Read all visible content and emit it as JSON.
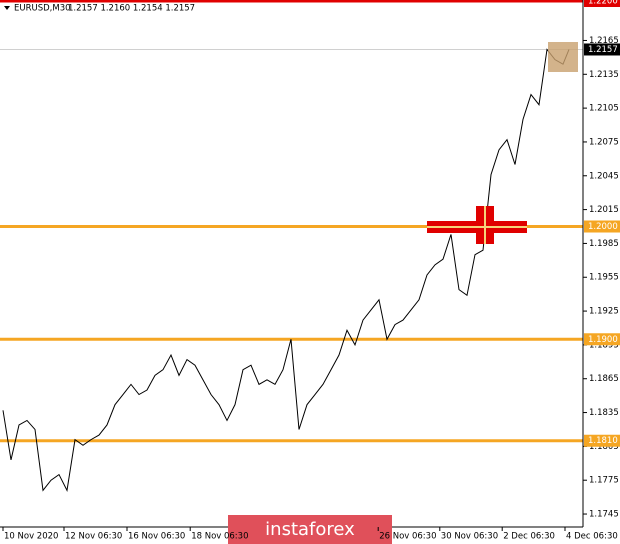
{
  "chart_data": {
    "type": "line",
    "title": "EURUSD,M30",
    "subtitle": "1.2157 1.2160 1.2154 1.2157",
    "watermark": "instaforex",
    "series": [
      {
        "name": "EURUSD",
        "color": "#000000",
        "x": [
          0,
          1,
          2,
          3,
          4,
          5,
          6,
          7,
          8,
          9,
          10,
          11,
          12,
          13,
          14,
          15,
          16,
          17,
          18,
          19,
          20,
          21,
          22,
          23,
          24,
          25,
          26,
          27,
          28,
          29,
          30,
          31,
          32,
          33,
          34,
          35,
          36,
          37,
          38,
          39,
          40,
          41,
          42,
          43,
          44,
          45,
          46,
          47,
          48,
          49,
          50,
          51,
          52,
          53,
          54,
          55,
          56,
          57,
          58,
          59,
          60,
          61,
          62,
          63,
          64,
          65,
          66,
          67,
          68,
          69,
          70,
          70.75
        ],
        "values": [
          1.1837,
          1.1793,
          1.1824,
          1.1828,
          1.182,
          1.1766,
          1.1775,
          1.178,
          1.1766,
          1.1811,
          1.1806,
          1.1811,
          1.1815,
          1.1824,
          1.1842,
          1.1851,
          1.186,
          1.1851,
          1.1855,
          1.1868,
          1.1873,
          1.1886,
          1.1868,
          1.1882,
          1.1877,
          1.1864,
          1.1851,
          1.1842,
          1.1828,
          1.1842,
          1.1873,
          1.1877,
          1.186,
          1.1864,
          1.186,
          1.1873,
          1.19,
          1.182,
          1.1842,
          1.1851,
          1.186,
          1.1873,
          1.1886,
          1.1908,
          1.1895,
          1.1917,
          1.1926,
          1.1935,
          1.19,
          1.1913,
          1.1917,
          1.1926,
          1.1935,
          1.1957,
          1.1966,
          1.1971,
          1.1993,
          1.1944,
          1.1939,
          1.1975,
          1.1979,
          1.2046,
          1.2068,
          1.2077,
          1.2055,
          1.2095,
          1.2117,
          1.2108,
          1.2157,
          1.2148,
          1.2144,
          1.2157
        ]
      }
    ],
    "xlim": [
      -0.375,
      72.5
    ],
    "xticks": [
      {
        "value": 0,
        "label": "10 Nov 2020"
      },
      {
        "value": 7.625,
        "label": "12 Nov 06:30"
      },
      {
        "value": 15.5,
        "label": "16 Nov 06:30"
      },
      {
        "value": 23.4,
        "label": "18 Nov 06:30"
      },
      {
        "value": 46.9,
        "label": "26 Nov 06:30"
      },
      {
        "value": 54.6,
        "label": "30 Nov 06:30"
      },
      {
        "value": 62.4,
        "label": "2 Dec 06:30"
      },
      {
        "value": 70.25,
        "label": "4 Dec 06:30"
      }
    ],
    "ylim": [
      1.17335,
      1.22
    ],
    "yticks": [
      1.2165,
      1.2135,
      1.2105,
      1.2075,
      1.2045,
      1.2015,
      1.1985,
      1.1955,
      1.1925,
      1.1895,
      1.1865,
      1.1835,
      1.1805,
      1.1775,
      1.1745
    ],
    "levels": [
      {
        "value": 1.22,
        "label": "1.2200",
        "color": "#e00000"
      },
      {
        "value": 1.2,
        "label": "1.2000",
        "color": "#f5a623"
      },
      {
        "value": 1.19,
        "label": "1.1900",
        "color": "#f5a623"
      },
      {
        "value": 1.181,
        "label": "1.1810",
        "color": "#f5a623"
      }
    ],
    "current_price": {
      "value": 1.2157,
      "label": "1.2157",
      "color": "#c0c0c0"
    }
  }
}
